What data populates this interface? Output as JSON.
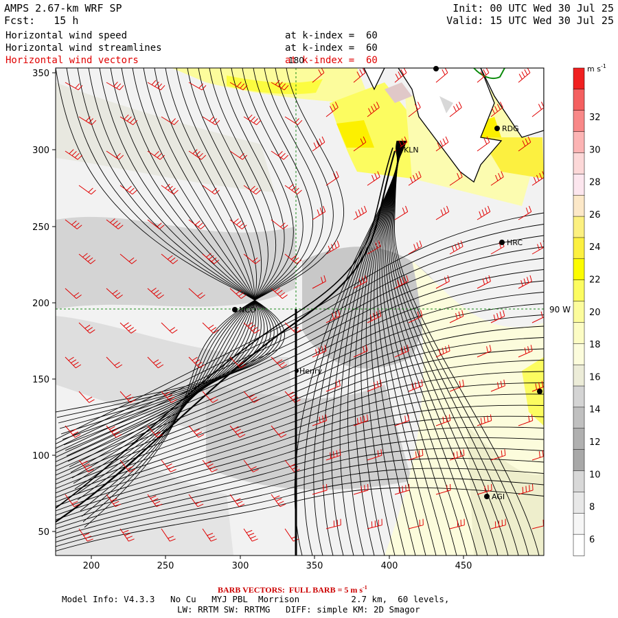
{
  "header": {
    "model": "AMPS 2.67-km WRF SP",
    "forecast": "Fcst:   15 h",
    "init": "Init: 00 UTC Wed 30 Jul 25",
    "valid": "Valid: 15 UTC Wed 30 Jul 25"
  },
  "fields": [
    {
      "name": "Horizontal wind speed",
      "level": "at k-index =  60",
      "color": "#000000"
    },
    {
      "name": "Horizontal wind streamlines",
      "level": "at k-index =  60",
      "color": "#000000"
    },
    {
      "name": "Horizontal wind vectors",
      "level": "at k-index =  60",
      "color": "#e00000"
    }
  ],
  "map": {
    "x_ticks": [
      "200",
      "250",
      "300",
      "350",
      "400",
      "450"
    ],
    "y_ticks": [
      "350",
      "300",
      "250",
      "200",
      "150",
      "100",
      "50"
    ],
    "meridian_label": "180",
    "parallel_label": "90 W",
    "stations": [
      "NCO",
      "KLN",
      "RDG",
      "HRC",
      "Henry",
      "AGI"
    ],
    "colors": {
      "streamline": "#000000",
      "barb": "#e00000",
      "graticule": "#1a8a1a",
      "coast": "#0a8a0a"
    }
  },
  "colorbar": {
    "unit": "m s",
    "unit_exp": "-1",
    "labels": [
      "32",
      "30",
      "28",
      "26",
      "24",
      "22",
      "20",
      "18",
      "16",
      "14",
      "12",
      "10",
      "8",
      "6"
    ],
    "colors": [
      "#f02020",
      "#f46060",
      "#f88888",
      "#fcb4b4",
      "#fcd8d8",
      "#fce6ee",
      "#fce8c8",
      "#fcf080",
      "#fcf040",
      "#fcfc00",
      "#fcfc60",
      "#fcfc9c",
      "#fcfcc4",
      "#fcfcdc",
      "#ececd8",
      "#d4d4d4",
      "#c0c0c0",
      "#b0b0b0",
      "#a8a8a8",
      "#d8d8d8",
      "#e8e8e8",
      "#f6f6f6",
      "#ffffff"
    ]
  },
  "footer": {
    "barb_note": "BARB VECTORS:  FULL BARB = 5 m s",
    "barb_exp": "-1",
    "model_info": "Model Info: V4.3.3   No Cu   MYJ PBL  Morrison          2.7 km,  60 levels,",
    "physics": "LW: RRTM SW: RRTMG   DIFF: simple KM: 2D Smagor"
  }
}
